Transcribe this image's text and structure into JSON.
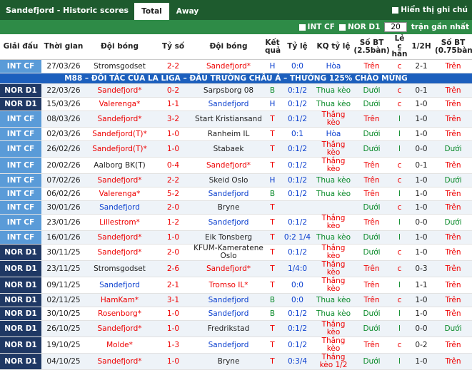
{
  "header": {
    "title": "Sandefjord - Historic scores",
    "tabs": [
      "Total",
      "Away"
    ],
    "note_toggle": "Hiển thị ghi chú"
  },
  "filters": {
    "leagues": [
      "INT CF",
      "NOR D1"
    ],
    "count": "20",
    "count_suffix": "trận gần nhất"
  },
  "table": {
    "columns": [
      "Giải đấu",
      "Thời gian",
      "Đội bóng",
      "Tỷ số",
      "Đội bóng",
      "Kết quả",
      "Tỷ lệ",
      "KQ tỷ lệ",
      "Số BT (2.5bàn)",
      "Lẻ c hẵn",
      "1/2H",
      "Số BT (0.75bàn)"
    ],
    "rows": [
      [
        "INT CF",
        "27/03/26",
        "Stromsgodset",
        "2-2",
        "Sandefjord*",
        "H",
        "0:0",
        "Hòa",
        "Trên",
        "c",
        "2-1",
        "Trên"
      ],
      {
        "ad": "M88 – ĐỐI TÁC CỦA LA LIGA – ĐẤU TRƯỜNG CHÂU Á – THƯỞNG 125% CHÀO MỪNG"
      },
      [
        "NOR D1",
        "22/03/26",
        "Sandefjord*",
        "0-2",
        "Sarpsborg 08",
        "B",
        "0:1/2",
        "Thua kèo",
        "Dưới",
        "c",
        "0-1",
        "Trên"
      ],
      [
        "NOR D1",
        "15/03/26",
        "Valerenga*",
        "1-1",
        "Sandefjord",
        "H",
        "0:1/2",
        "Thua kèo",
        "Dưới",
        "c",
        "1-0",
        "Trên"
      ],
      [
        "INT CF",
        "08/03/26",
        "Sandefjord*",
        "3-2",
        "Start Kristiansand",
        "T",
        "0:1/2",
        "Thắng kèo",
        "Trên",
        "l",
        "1-0",
        "Trên"
      ],
      [
        "INT CF",
        "02/03/26",
        "Sandefjord(T)*",
        "1-0",
        "Ranheim IL",
        "T",
        "0:1",
        "Hòa",
        "Dưới",
        "l",
        "1-0",
        "Trên"
      ],
      [
        "INT CF",
        "26/02/26",
        "Sandefjord(T)*",
        "1-0",
        "Stabaek",
        "T",
        "0:1/2",
        "Thắng kèo",
        "Dưới",
        "l",
        "0-0",
        "Dưới"
      ],
      [
        "INT CF",
        "20/02/26",
        "Aalborg BK(T)",
        "0-4",
        "Sandefjord*",
        "T",
        "0:1/2",
        "Thắng kèo",
        "Trên",
        "c",
        "0-1",
        "Trên"
      ],
      [
        "INT CF",
        "07/02/26",
        "Sandefjord*",
        "2-2",
        "Skeid Oslo",
        "H",
        "0:1/2",
        "Thua kèo",
        "Trên",
        "c",
        "1-0",
        "Dưới"
      ],
      [
        "INT CF",
        "06/02/26",
        "Valerenga*",
        "5-2",
        "Sandefjord",
        "B",
        "0:1/2",
        "Thua kèo",
        "Trên",
        "l",
        "1-0",
        "Trên"
      ],
      [
        "INT CF",
        "30/01/26",
        "Sandefjord",
        "2-0",
        "Bryne",
        "T",
        null,
        null,
        "Dưới",
        "c",
        "1-0",
        "Trên"
      ],
      [
        "INT CF",
        "23/01/26",
        "Lillestrom*",
        "1-2",
        "Sandefjord",
        "T",
        "0:1/2",
        "Thắng kèo",
        "Trên",
        "l",
        "0-0",
        "Dưới"
      ],
      [
        "INT CF",
        "16/01/26",
        "Sandefjord*",
        "1-0",
        "Eik Tonsberg",
        "T",
        "0:2 1/4",
        "Thua kèo",
        "Dưới",
        "l",
        "1-0",
        "Trên"
      ],
      [
        "NOR D1",
        "30/11/25",
        "Sandefjord*",
        "2-0",
        "KFUM-Kameratene Oslo",
        "T",
        "0:1/2",
        "Thắng kèo",
        "Dưới",
        "c",
        "1-0",
        "Trên"
      ],
      [
        "NOR D1",
        "23/11/25",
        "Stromsgodset",
        "2-6",
        "Sandefjord*",
        "T",
        "1/4:0",
        "Thắng kèo",
        "Trên",
        "c",
        "0-3",
        "Trên"
      ],
      [
        "NOR D1",
        "09/11/25",
        "Sandefjord",
        "2-1",
        "Tromso IL*",
        "T",
        "0:0",
        "Thắng kèo",
        "Trên",
        "l",
        "1-1",
        "Trên"
      ],
      [
        "NOR D1",
        "02/11/25",
        "HamKam*",
        "3-1",
        "Sandefjord",
        "B",
        "0:0",
        "Thua kèo",
        "Trên",
        "c",
        "1-0",
        "Trên"
      ],
      [
        "NOR D1",
        "30/10/25",
        "Rosenborg*",
        "1-0",
        "Sandefjord",
        "B",
        "0:1/2",
        "Thua kèo",
        "Dưới",
        "l",
        "1-0",
        "Trên"
      ],
      [
        "NOR D1",
        "26/10/25",
        "Sandefjord*",
        "1-0",
        "Fredrikstad",
        "T",
        "0:1/2",
        "Thắng kèo",
        "Dưới",
        "l",
        "0-0",
        "Dưới"
      ],
      [
        "NOR D1",
        "19/10/25",
        "Molde*",
        "1-3",
        "Sandefjord",
        "T",
        "0:1/2",
        "Thắng kèo",
        "Trên",
        "c",
        "0-2",
        "Trên"
      ],
      [
        "NOR D1",
        "04/10/25",
        "Sandefjord*",
        "1-0",
        "Bryne",
        "T",
        "0:3/4",
        "Thắng kèo 1/2",
        "Dưới",
        "l",
        "1-0",
        "Trên"
      ]
    ]
  }
}
